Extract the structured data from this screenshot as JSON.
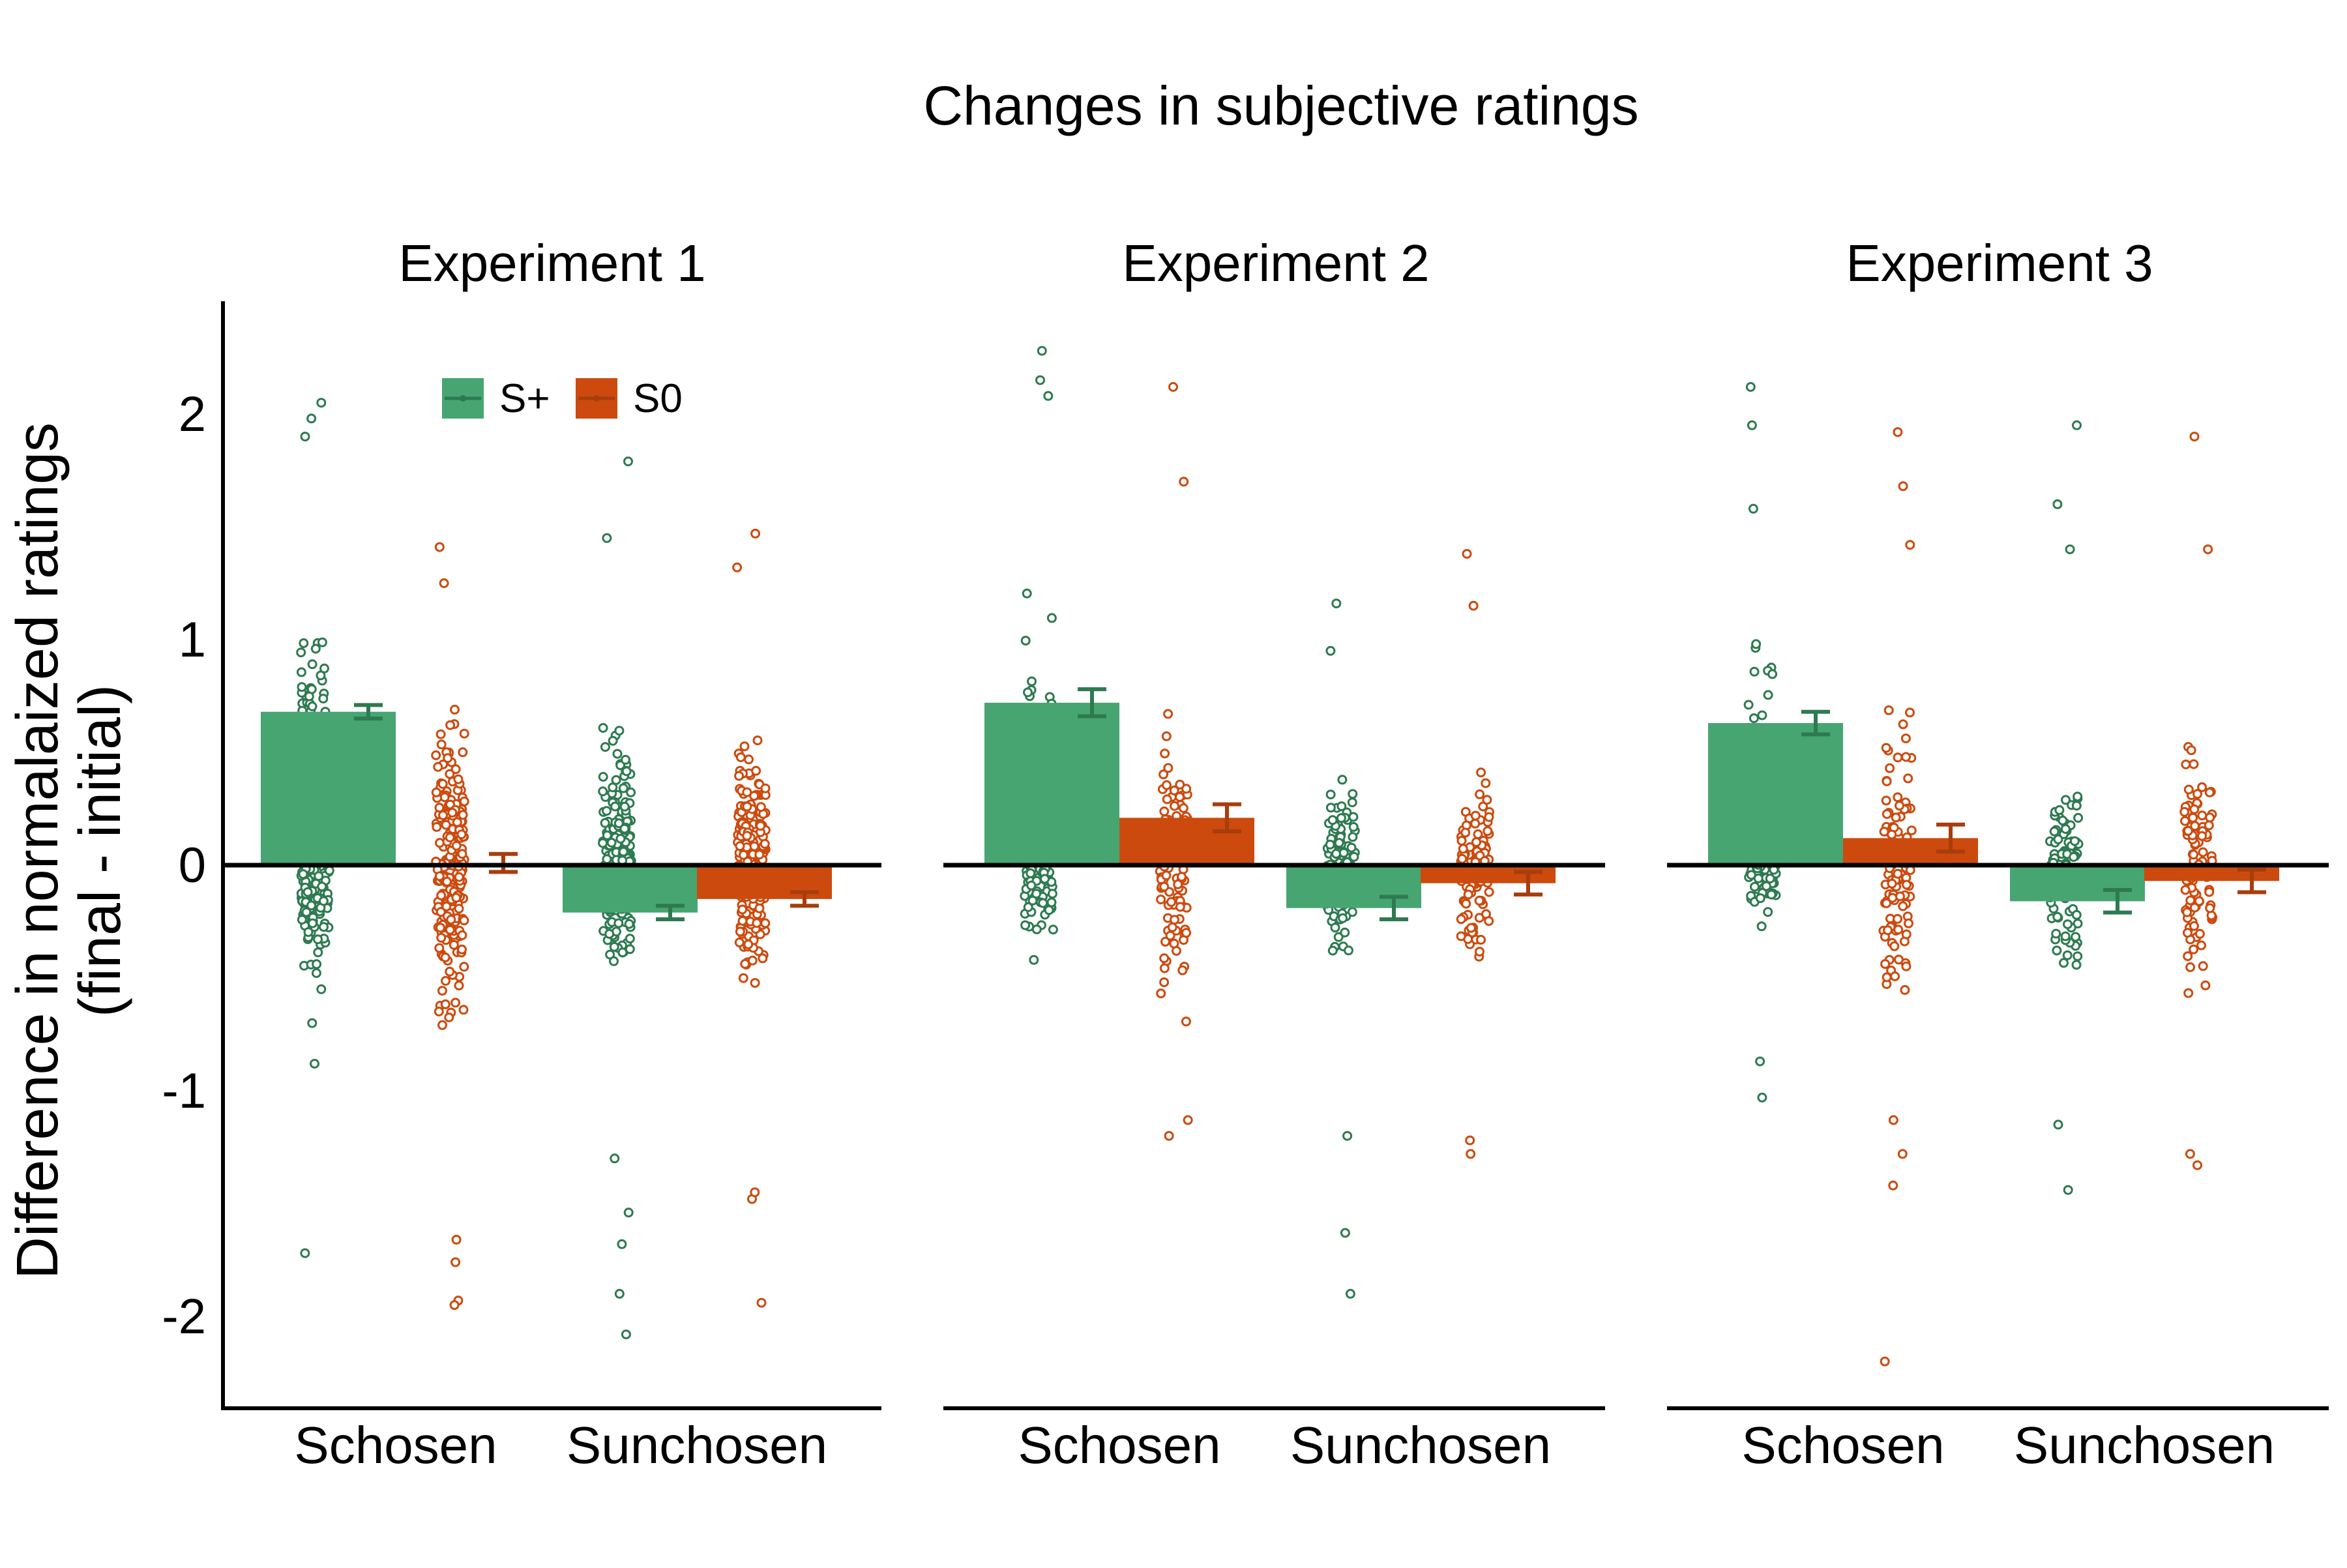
{
  "colors": {
    "splus": "#47a572",
    "splus_dark": "#2e7a50",
    "s0": "#cc4a0e",
    "s0_dark": "#a83d0c",
    "axis": "#000000"
  },
  "chart_data": {
    "type": "bar",
    "title": "Changes in subjective ratings",
    "ylabel_line1": "Difference in normalaized ratings",
    "ylabel_line2": "(final - initial)",
    "ylim": [
      -2.4,
      2.5
    ],
    "yticks": [
      -2,
      -1,
      0,
      1,
      2
    ],
    "ytick_labels": [
      "-2",
      "-1",
      "0",
      "1",
      "2"
    ],
    "categories": [
      "Schosen",
      "Sunchosen"
    ],
    "legend": {
      "position": "top-left",
      "entries": [
        "S+",
        "S0"
      ]
    },
    "panels": [
      {
        "title": "Experiment 1",
        "series": [
          {
            "name": "S+",
            "values": [
              0.68,
              -0.21
            ],
            "errors": [
              0.03,
              0.03
            ]
          },
          {
            "name": "S0",
            "values": [
              0.01,
              -0.15
            ],
            "errors": [
              0.04,
              0.03
            ]
          }
        ],
        "spread": [
          [
            1.35,
            0.55
          ],
          [
            0.85,
            0.85
          ],
          [
            0.7,
            0.55
          ],
          [
            0.75,
            0.6
          ]
        ],
        "counts": [
          260,
          230,
          230,
          230
        ],
        "outliers": [
          [
            2.05,
            1.98,
            1.9,
            -1.72,
            -0.88,
            -0.7,
            -0.55
          ],
          [
            1.41,
            1.25,
            -1.93,
            -1.95,
            -1.66,
            -1.76
          ],
          [
            1.79,
            1.45,
            -2.08,
            -1.9,
            -1.68,
            -1.54,
            -1.3
          ],
          [
            1.47,
            1.32,
            -1.94,
            -1.48,
            -1.45
          ]
        ]
      },
      {
        "title": "Experiment 2",
        "series": [
          {
            "name": "S+",
            "values": [
              0.72,
              -0.19
            ],
            "errors": [
              0.06,
              0.05
            ]
          },
          {
            "name": "S0",
            "values": [
              0.21,
              -0.08
            ],
            "errors": [
              0.06,
              0.05
            ]
          }
        ],
        "spread": [
          [
            1.7,
            0.42
          ],
          [
            0.8,
            0.8
          ],
          [
            0.55,
            0.55
          ],
          [
            0.65,
            0.6
          ]
        ],
        "counts": [
          105,
          105,
          105,
          105
        ],
        "outliers": [
          [
            2.28,
            2.15,
            2.08,
            -0.42
          ],
          [
            2.12,
            1.7,
            -1.2,
            -1.13
          ],
          [
            1.16,
            0.95,
            -1.9,
            -1.63,
            -1.2
          ],
          [
            1.38,
            1.15,
            -1.28,
            -1.22
          ]
        ]
      },
      {
        "title": "Experiment 3",
        "series": [
          {
            "name": "S+",
            "values": [
              0.63,
              -0.16
            ],
            "errors": [
              0.05,
              0.05
            ]
          },
          {
            "name": "S0",
            "values": [
              0.12,
              -0.07
            ],
            "errors": [
              0.06,
              0.05
            ]
          }
        ],
        "spread": [
          [
            1.25,
            0.35
          ],
          [
            0.95,
            0.8
          ],
          [
            0.5,
            0.6
          ],
          [
            0.6,
            0.65
          ]
        ],
        "counts": [
          100,
          100,
          100,
          100
        ],
        "outliers": [
          [
            2.12,
            1.95,
            1.58,
            -1.03,
            -0.87
          ],
          [
            1.92,
            1.68,
            1.42,
            -2.2,
            -1.42,
            -1.28,
            -1.13
          ],
          [
            1.95,
            1.6,
            1.4,
            -1.44,
            -1.15
          ],
          [
            1.9,
            1.4,
            -1.33,
            -1.28
          ]
        ]
      }
    ]
  }
}
